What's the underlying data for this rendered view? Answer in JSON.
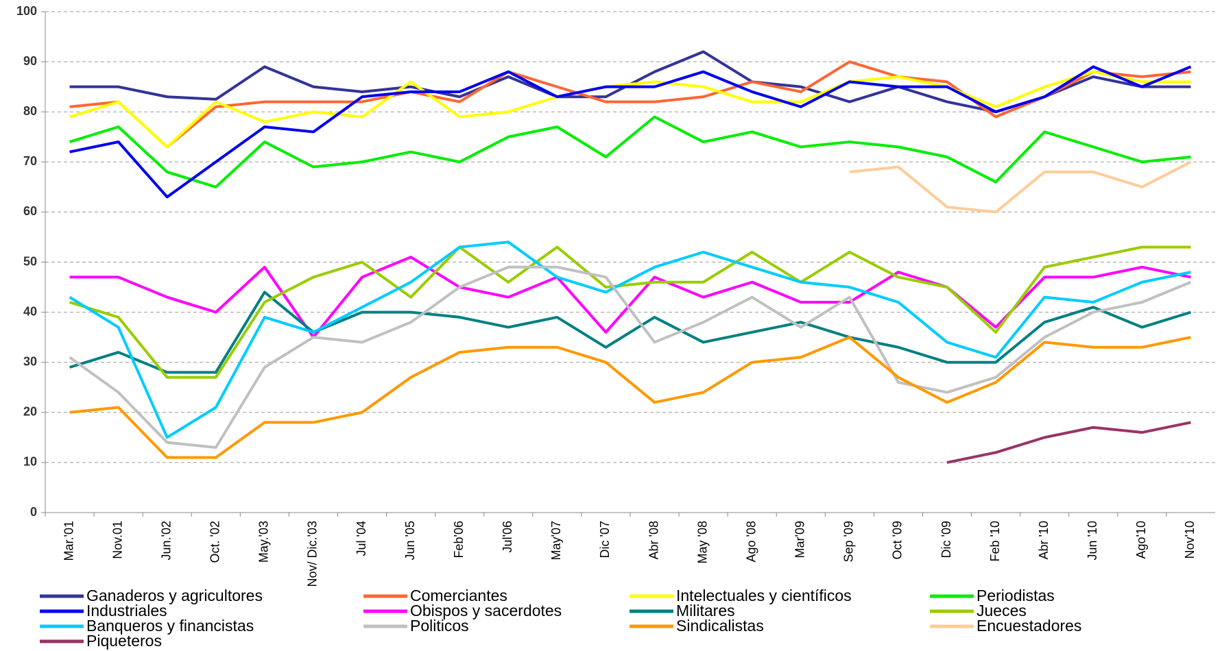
{
  "chart_data": {
    "type": "line",
    "categories": [
      "Mar.'01",
      "Nov.01",
      "Jun.'02",
      "Oct. '02",
      "May.'03",
      "Nov/ Dic.'03",
      "Jul '04",
      "Jun '05",
      "Feb'06",
      "Jul'06",
      "May'07",
      "Dic '07",
      "Abr '08",
      "May '08",
      "Ago '08",
      "Mar'09",
      "Sep '09",
      "Oct '09",
      "Dic '09",
      "Feb '10",
      "Abr '10",
      "Jun '10",
      "Ago'10",
      "Nov'10"
    ],
    "series": [
      {
        "name": "Ganaderos y agricultores",
        "color": "#333399",
        "values": [
          85,
          85,
          83,
          82.5,
          89,
          85,
          84,
          85,
          83,
          87,
          83,
          83,
          88,
          92,
          86,
          85,
          82,
          85,
          82,
          80,
          83,
          87,
          85,
          85
        ]
      },
      {
        "name": "Comerciantes",
        "color": "#ff6633",
        "values": [
          81,
          82,
          73,
          81,
          82,
          82,
          82,
          84,
          82,
          88,
          85,
          82,
          82,
          83,
          86,
          84,
          90,
          87,
          86,
          79,
          83,
          88,
          87,
          88
        ]
      },
      {
        "name": "Intelectuales y científicos",
        "color": "#ffff00",
        "values": [
          79,
          82,
          73,
          82,
          78,
          80,
          79,
          86,
          79,
          80,
          83,
          85,
          86,
          85,
          82,
          82,
          86,
          87,
          85,
          81,
          85,
          88,
          86,
          86
        ]
      },
      {
        "name": "Periodistas",
        "color": "#00ee00",
        "values": [
          74,
          77,
          68,
          65,
          74,
          69,
          70,
          72,
          70,
          75,
          77,
          71,
          79,
          74,
          76,
          73,
          74,
          73,
          71,
          66,
          76,
          73,
          70,
          71
        ]
      },
      {
        "name": "Industriales",
        "color": "#0000ee",
        "values": [
          72,
          74,
          63,
          70,
          77,
          76,
          83,
          84,
          84,
          88,
          83,
          85,
          85,
          88,
          84,
          81,
          86,
          85,
          85,
          80,
          83,
          89,
          85,
          89
        ]
      },
      {
        "name": "Obispos y sacerdotes",
        "color": "#ff00ff",
        "values": [
          47,
          47,
          43,
          40,
          49,
          35,
          47,
          51,
          45,
          43,
          47,
          36,
          47,
          43,
          46,
          42,
          42,
          48,
          45,
          37,
          47,
          47,
          49,
          47
        ]
      },
      {
        "name": "Militares",
        "color": "#008080",
        "values": [
          29,
          32,
          28,
          28,
          44,
          36,
          40,
          40,
          39,
          37,
          39,
          33,
          39,
          34,
          36,
          38,
          35,
          33,
          30,
          30,
          38,
          41,
          37,
          40
        ]
      },
      {
        "name": "Jueces",
        "color": "#99cc00",
        "values": [
          42,
          39,
          27,
          27,
          42,
          47,
          50,
          43,
          53,
          46,
          53,
          45,
          46,
          46,
          52,
          46,
          52,
          47,
          45,
          36,
          49,
          51,
          53,
          53
        ]
      },
      {
        "name": "Banqueros y financistas",
        "color": "#00ccff",
        "values": [
          43,
          37,
          15,
          21,
          39,
          36,
          41,
          46,
          53,
          54,
          47,
          44,
          49,
          52,
          49,
          46,
          45,
          42,
          34,
          31,
          43,
          42,
          46,
          48
        ]
      },
      {
        "name": "Politicos",
        "color": "#c0c0c0",
        "values": [
          31,
          24,
          14,
          13,
          29,
          35,
          34,
          38,
          45,
          49,
          49,
          47,
          34,
          38,
          43,
          37,
          43,
          26,
          24,
          27,
          35,
          40,
          42,
          46
        ]
      },
      {
        "name": "Sindicalistas",
        "color": "#ff9900",
        "values": [
          20,
          21,
          11,
          11,
          18,
          18,
          20,
          27,
          32,
          33,
          33,
          30,
          22,
          24,
          30,
          31,
          35,
          27,
          22,
          26,
          34,
          33,
          33,
          35
        ]
      },
      {
        "name": "Encuestadores",
        "color": "#ffcc99",
        "values": [
          null,
          null,
          null,
          null,
          null,
          null,
          null,
          null,
          null,
          null,
          null,
          null,
          null,
          null,
          null,
          null,
          68,
          69,
          61,
          60,
          68,
          68,
          65,
          70
        ]
      },
      {
        "name": "Piqueteros",
        "color": "#993366",
        "values": [
          null,
          null,
          null,
          null,
          null,
          null,
          null,
          null,
          null,
          null,
          null,
          null,
          null,
          null,
          null,
          null,
          null,
          null,
          10,
          12,
          15,
          17,
          16,
          18
        ]
      }
    ],
    "ylim": [
      0,
      100
    ],
    "yticks": [
      0,
      10,
      20,
      30,
      40,
      50,
      60,
      70,
      80,
      90,
      100
    ],
    "grid": true
  }
}
